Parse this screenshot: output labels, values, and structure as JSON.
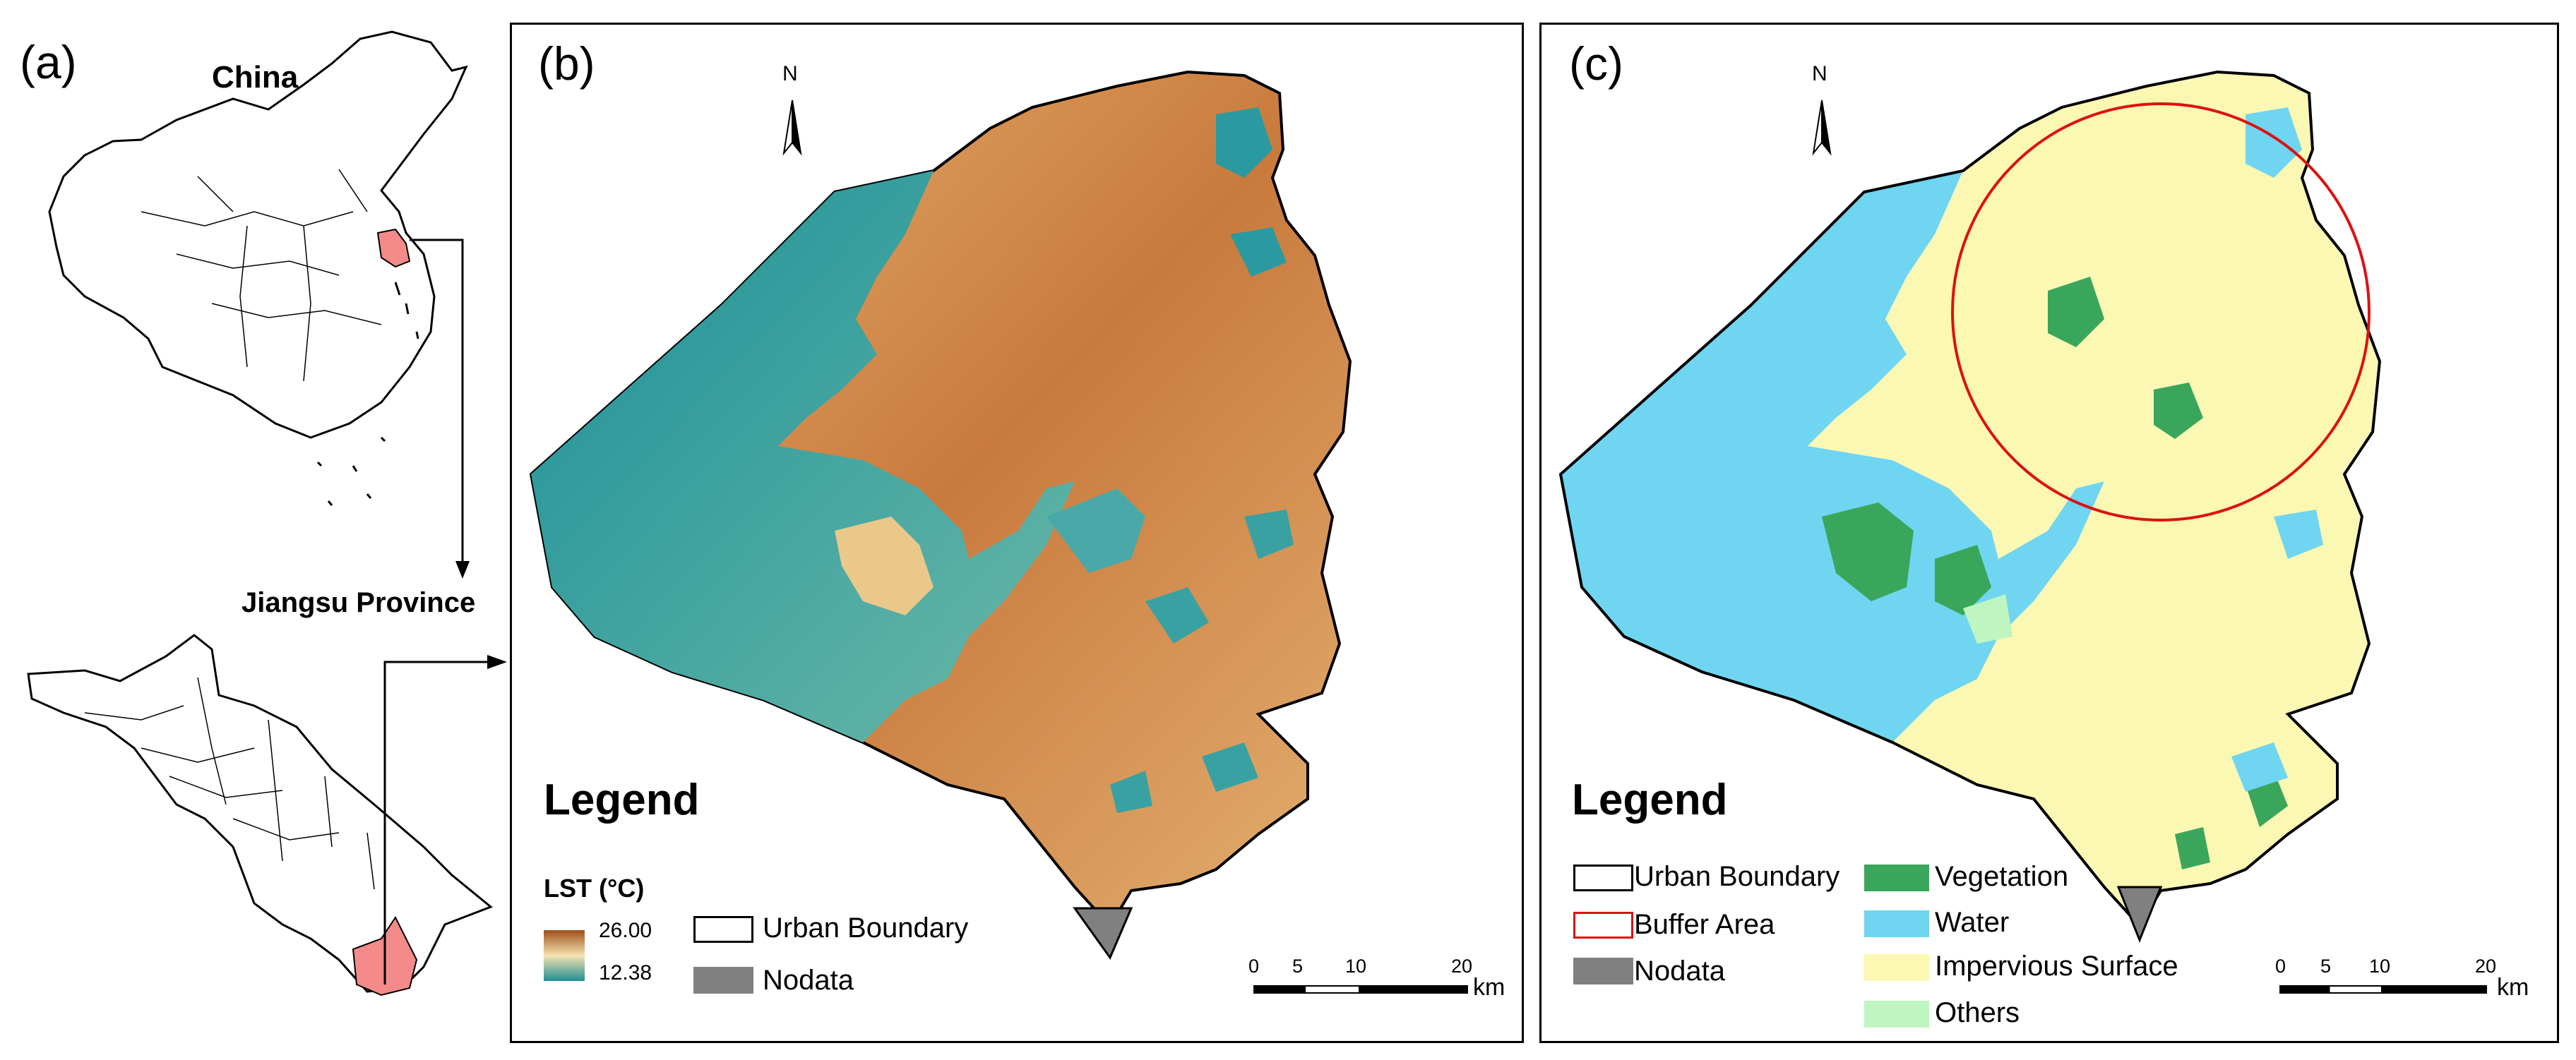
{
  "panel_a": {
    "label": "(a)",
    "china_label": "China",
    "province_label": "Jiangsu Province"
  },
  "panel_b": {
    "label": "(b)",
    "north": "N",
    "legend_title": "Legend",
    "lst_title": "LST (°C)",
    "lst_max": "26.00",
    "lst_min": "12.38",
    "urban_boundary": "Urban Boundary",
    "nodata": "Nodata",
    "scale": {
      "ticks": [
        "0",
        "5",
        "10",
        "20"
      ],
      "unit": "km"
    }
  },
  "panel_c": {
    "label": "(c)",
    "north": "N",
    "legend_title": "Legend",
    "urban_boundary": "Urban Boundary",
    "buffer_area": "Buffer Area",
    "nodata": "Nodata",
    "vegetation": "Vegetation",
    "water": "Water",
    "impervious": "Impervious Surface",
    "others": "Others",
    "scale": {
      "ticks": [
        "0",
        "5",
        "10",
        "20"
      ],
      "unit": "km"
    }
  },
  "colors": {
    "lst_hot": "#a0501a",
    "lst_mid": "#f5e2b0",
    "lst_cold": "#1f8f96",
    "vegetation": "#3aa65c",
    "water": "#6fd5f0",
    "impervious": "#fbf8b4",
    "others": "#bff5c0",
    "buffer": "#dd1111",
    "nodata": "#808080",
    "highlight": "#f58a8a"
  }
}
